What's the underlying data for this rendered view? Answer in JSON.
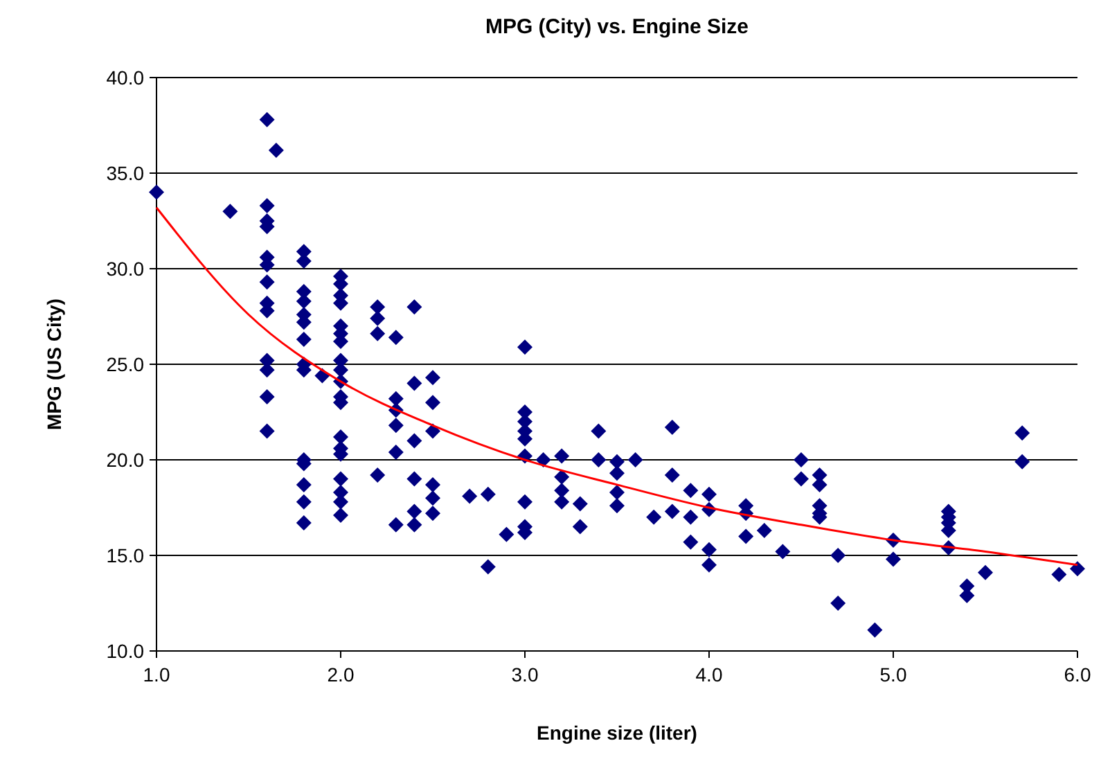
{
  "chart_data": {
    "type": "scatter",
    "title": "MPG (City) vs. Engine Size",
    "xlabel": "Engine size (liter)",
    "ylabel": "MPG (US City)",
    "xlim": [
      1,
      6
    ],
    "xticks": [
      {
        "value": 1,
        "label": "1.0"
      },
      {
        "value": 2,
        "label": "2.0"
      },
      {
        "value": 3,
        "label": "3.0"
      },
      {
        "value": 4,
        "label": "4.0"
      },
      {
        "value": 5,
        "label": "5.0"
      },
      {
        "value": 6,
        "label": "6.0"
      }
    ],
    "ylim": [
      10,
      40
    ],
    "yticks": [
      {
        "value": 10,
        "label": "10.0"
      },
      {
        "value": 15,
        "label": "15.0"
      },
      {
        "value": 20,
        "label": "20.0"
      },
      {
        "value": 25,
        "label": "25.0"
      },
      {
        "value": 30,
        "label": "30.0"
      },
      {
        "value": 35,
        "label": "35.0"
      },
      {
        "value": 40,
        "label": "40.0"
      }
    ],
    "grid": "y",
    "marker": "diamond",
    "series": [
      {
        "color": "#000080",
        "x": [
          1.0,
          1.4,
          1.6,
          1.6,
          1.6,
          1.6,
          1.6,
          1.6,
          1.6,
          1.6,
          1.6,
          1.6,
          1.6,
          1.6,
          1.6,
          1.65,
          1.8,
          1.8,
          1.8,
          1.8,
          1.8,
          1.8,
          1.8,
          1.8,
          1.8,
          1.8,
          1.8,
          1.8,
          1.8,
          1.8,
          1.9,
          2.0,
          2.0,
          2.0,
          2.0,
          2.0,
          2.0,
          2.0,
          2.0,
          2.0,
          2.0,
          2.0,
          2.0,
          2.0,
          2.0,
          2.0,
          2.0,
          2.0,
          2.0,
          2.0,
          2.2,
          2.2,
          2.2,
          2.2,
          2.3,
          2.3,
          2.3,
          2.3,
          2.3,
          2.3,
          2.4,
          2.4,
          2.4,
          2.4,
          2.4,
          2.4,
          2.5,
          2.5,
          2.5,
          2.5,
          2.5,
          2.5,
          2.7,
          2.8,
          2.8,
          2.9,
          3.0,
          3.0,
          3.0,
          3.0,
          3.0,
          3.0,
          3.0,
          3.0,
          3.0,
          3.1,
          3.2,
          3.2,
          3.2,
          3.2,
          3.3,
          3.3,
          3.4,
          3.4,
          3.5,
          3.5,
          3.5,
          3.5,
          3.6,
          3.7,
          3.8,
          3.8,
          3.8,
          3.9,
          3.9,
          3.9,
          4.0,
          4.0,
          4.0,
          4.0,
          4.2,
          4.2,
          4.2,
          4.3,
          4.4,
          4.5,
          4.5,
          4.6,
          4.6,
          4.6,
          4.6,
          4.6,
          4.7,
          4.7,
          4.9,
          5.0,
          5.0,
          5.3,
          5.3,
          5.3,
          5.3,
          5.3,
          5.4,
          5.4,
          5.5,
          5.7,
          5.7,
          5.9,
          6.0
        ],
        "values": [
          34.0,
          33.0,
          37.8,
          33.3,
          32.5,
          32.2,
          30.6,
          30.2,
          29.3,
          28.2,
          27.8,
          25.2,
          24.7,
          23.3,
          21.5,
          36.2,
          30.9,
          30.4,
          28.8,
          28.3,
          27.6,
          27.2,
          26.3,
          25.0,
          24.7,
          20.0,
          19.8,
          18.7,
          17.8,
          16.7,
          24.4,
          29.6,
          29.2,
          28.6,
          28.2,
          27.0,
          26.6,
          26.2,
          25.2,
          24.7,
          24.1,
          23.3,
          23.0,
          21.2,
          20.6,
          20.3,
          19.0,
          18.3,
          17.8,
          17.1,
          28.0,
          27.4,
          26.6,
          19.2,
          26.4,
          23.2,
          22.6,
          21.8,
          20.4,
          16.6,
          28.0,
          24.0,
          21.0,
          19.0,
          17.3,
          16.6,
          24.3,
          23.0,
          21.5,
          18.7,
          18.0,
          17.2,
          18.1,
          18.2,
          14.4,
          16.1,
          25.9,
          22.5,
          22.0,
          21.5,
          21.1,
          20.2,
          17.8,
          16.5,
          16.2,
          20.0,
          20.2,
          19.1,
          18.4,
          17.8,
          17.7,
          16.5,
          21.5,
          20.0,
          19.9,
          19.3,
          18.3,
          17.6,
          20.0,
          17.0,
          21.7,
          19.2,
          17.3,
          18.4,
          17.0,
          15.7,
          18.2,
          17.4,
          15.3,
          14.5,
          17.6,
          17.2,
          16.0,
          16.3,
          15.2,
          20.0,
          19.0,
          19.2,
          18.7,
          17.6,
          17.2,
          17.0,
          15.0,
          12.5,
          11.1,
          15.8,
          14.8,
          17.3,
          17.0,
          16.7,
          16.3,
          15.4,
          13.4,
          12.9,
          14.1,
          21.4,
          19.9,
          14.0,
          14.3
        ]
      },
      {
        "type": "line",
        "color": "#ff0000",
        "marker": "none",
        "x": [
          1,
          1.5,
          2,
          2.5,
          3,
          3.5,
          4,
          4.5,
          5,
          5.5,
          6
        ],
        "values": [
          33.2,
          27.6,
          24.1,
          21.8,
          20.0,
          18.7,
          17.5,
          16.6,
          15.8,
          15.2,
          14.5
        ]
      }
    ]
  }
}
